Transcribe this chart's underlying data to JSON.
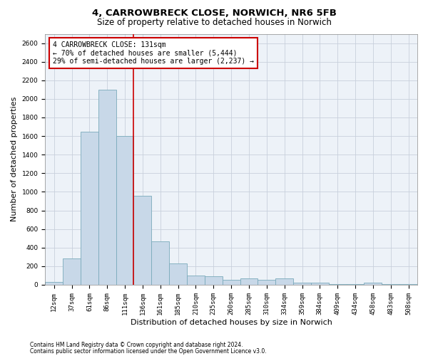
{
  "title_line1": "4, CARROWBRECK CLOSE, NORWICH, NR6 5FB",
  "title_line2": "Size of property relative to detached houses in Norwich",
  "xlabel": "Distribution of detached houses by size in Norwich",
  "ylabel": "Number of detached properties",
  "footnote1": "Contains HM Land Registry data © Crown copyright and database right 2024.",
  "footnote2": "Contains public sector information licensed under the Open Government Licence v3.0.",
  "annotation_line1": "4 CARROWBRECK CLOSE: 131sqm",
  "annotation_line2": "← 70% of detached houses are smaller (5,444)",
  "annotation_line3": "29% of semi-detached houses are larger (2,237) →",
  "bar_color": "#c8d8e8",
  "bar_edge_color": "#7aaabb",
  "vline_color": "#cc0000",
  "annotation_box_color": "#cc0000",
  "grid_color": "#c8d0dc",
  "background_color": "#edf2f8",
  "categories": [
    "12sqm",
    "37sqm",
    "61sqm",
    "86sqm",
    "111sqm",
    "136sqm",
    "161sqm",
    "185sqm",
    "210sqm",
    "235sqm",
    "260sqm",
    "285sqm",
    "310sqm",
    "334sqm",
    "359sqm",
    "384sqm",
    "409sqm",
    "434sqm",
    "458sqm",
    "483sqm",
    "508sqm"
  ],
  "values": [
    30,
    280,
    1650,
    2100,
    1600,
    960,
    470,
    230,
    100,
    90,
    50,
    70,
    50,
    70,
    25,
    20,
    10,
    5,
    20,
    5,
    5
  ],
  "ylim": [
    0,
    2700
  ],
  "yticks": [
    0,
    200,
    400,
    600,
    800,
    1000,
    1200,
    1400,
    1600,
    1800,
    2000,
    2200,
    2400,
    2600
  ],
  "title_fontsize": 9.5,
  "subtitle_fontsize": 8.5,
  "ylabel_fontsize": 8,
  "xlabel_fontsize": 8,
  "tick_fontsize": 6.5,
  "annotation_fontsize": 7,
  "footnote_fontsize": 5.5
}
